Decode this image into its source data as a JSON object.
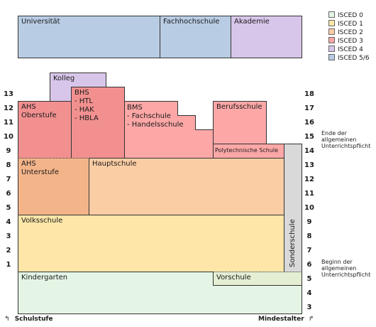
{
  "colors": {
    "isced0": "#e5f5e5",
    "isced1": "#fde6a8",
    "isced2": "#fbcda4",
    "isced2_ahs": "#f4b48a",
    "isced3": "#fda7a7",
    "isced3_bhs": "#f29090",
    "isced4": "#d8c6ea",
    "isced56": "#b8cce4",
    "sonderschule": "#d9d9d9",
    "vorschule": "#e4eed3"
  },
  "legend": [
    {
      "label": "ISCED 0",
      "color": "#e5f5e5"
    },
    {
      "label": "ISCED 1",
      "color": "#fde6a8"
    },
    {
      "label": "ISCED 2",
      "color": "#fbcda4"
    },
    {
      "label": "ISCED 3",
      "color": "#fda7a7"
    },
    {
      "label": "ISCED 4",
      "color": "#d8c6ea"
    },
    {
      "label": "ISCED 5/6",
      "color": "#b8cce4"
    }
  ],
  "tertiary": {
    "universitaet": "Universität",
    "fachhochschule": "Fachhochschule",
    "akademie": "Akademie"
  },
  "schools": {
    "kolleg": "Kolleg",
    "ahs_oberstufe": "AHS\nOberstufe",
    "bhs": "BHS\n- HTL\n- HAK\n- HBLA",
    "bms": "BMS\n- Fachschule\n- Handelsschule",
    "berufsschule": "Berufsschule",
    "polytechnische": "Polytechnische Schule",
    "ahs_unterstufe": "AHS\nUnterstufe",
    "hauptschule": "Hauptschule",
    "volksschule": "Volksschule",
    "sonderschule": "Sonderschule",
    "kindergarten": "Kindergarten",
    "vorschule": "Vorschule"
  },
  "schulstufen": [
    "13",
    "12",
    "11",
    "10",
    "9",
    "8",
    "7",
    "6",
    "5",
    "4",
    "3",
    "2",
    "1"
  ],
  "mindestalter": [
    "18",
    "17",
    "16",
    "15",
    "14",
    "13",
    "12",
    "11",
    "10",
    "9",
    "8",
    "7",
    "6",
    "5",
    "4",
    "3"
  ],
  "notes": {
    "ende": "Ende der\nallgemeinen\nUnterrichtspflicht",
    "beginn": "Beginn der\nallgemeinen\nUnterrichtspflicht"
  },
  "axis": {
    "left": "Schulstufe",
    "right": "Mindestalter",
    "left_arrow": "↰",
    "right_arrow": "↱"
  }
}
